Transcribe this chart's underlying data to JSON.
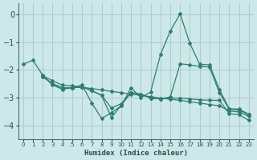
{
  "xlabel": "Humidex (Indice chaleur)",
  "xlim": [
    -0.5,
    23.5
  ],
  "ylim": [
    -4.5,
    0.4
  ],
  "yticks": [
    0,
    -1,
    -2,
    -3,
    -4
  ],
  "xticks": [
    0,
    1,
    2,
    3,
    4,
    5,
    6,
    7,
    8,
    9,
    10,
    11,
    12,
    13,
    14,
    15,
    16,
    17,
    18,
    19,
    20,
    21,
    22,
    23
  ],
  "background_color": "#cde8e8",
  "grid_color": "#b0cccc",
  "line_color": "#2e7d6e",
  "line1_x": [
    0,
    1,
    2,
    3,
    4,
    5,
    6,
    7,
    8,
    9,
    10,
    11,
    12,
    13,
    14,
    15,
    16,
    17,
    18,
    19,
    20,
    21,
    22,
    23
  ],
  "line1_y": [
    -1.8,
    -1.65,
    -2.2,
    -2.55,
    -2.7,
    -2.65,
    -2.55,
    -3.2,
    -3.75,
    -3.55,
    -3.3,
    -2.65,
    -3.0,
    -2.8,
    -1.45,
    -0.6,
    0.02,
    -1.05,
    -1.8,
    -1.82,
    -2.7,
    -3.4,
    -3.42,
    -3.6
  ],
  "line2_x": [
    2,
    3,
    4,
    5,
    6,
    7,
    8,
    9,
    10,
    11,
    12,
    13,
    14,
    15,
    16,
    17,
    18,
    19,
    20,
    21,
    22,
    23
  ],
  "line2_y": [
    -2.2,
    -2.4,
    -2.55,
    -2.58,
    -2.62,
    -2.68,
    -2.72,
    -2.78,
    -2.82,
    -2.88,
    -2.92,
    -2.97,
    -3.02,
    -3.06,
    -3.1,
    -3.15,
    -3.2,
    -3.25,
    -3.3,
    -3.48,
    -3.52,
    -3.68
  ],
  "line3_x": [
    2,
    3,
    4,
    5,
    6,
    7,
    8,
    9,
    10,
    11,
    12,
    13,
    14,
    15,
    16,
    17,
    18,
    19,
    20,
    21,
    22,
    23
  ],
  "line3_y": [
    -2.25,
    -2.5,
    -2.65,
    -2.65,
    -2.62,
    -2.75,
    -2.92,
    -3.38,
    -3.22,
    -2.82,
    -2.88,
    -3.02,
    -3.05,
    -2.98,
    -1.78,
    -1.82,
    -1.88,
    -1.9,
    -2.82,
    -3.42,
    -3.45,
    -3.62
  ],
  "line4_x": [
    2,
    3,
    4,
    5,
    6,
    7,
    8,
    9,
    10,
    11,
    12,
    13,
    14,
    15,
    16,
    17,
    18,
    19,
    20,
    21,
    22,
    23
  ],
  "line4_y": [
    -2.25,
    -2.5,
    -2.65,
    -2.65,
    -2.62,
    -2.75,
    -2.92,
    -3.72,
    -3.28,
    -2.82,
    -2.88,
    -3.02,
    -3.05,
    -3.02,
    -3.02,
    -3.05,
    -3.08,
    -3.1,
    -3.1,
    -3.58,
    -3.62,
    -3.82
  ]
}
